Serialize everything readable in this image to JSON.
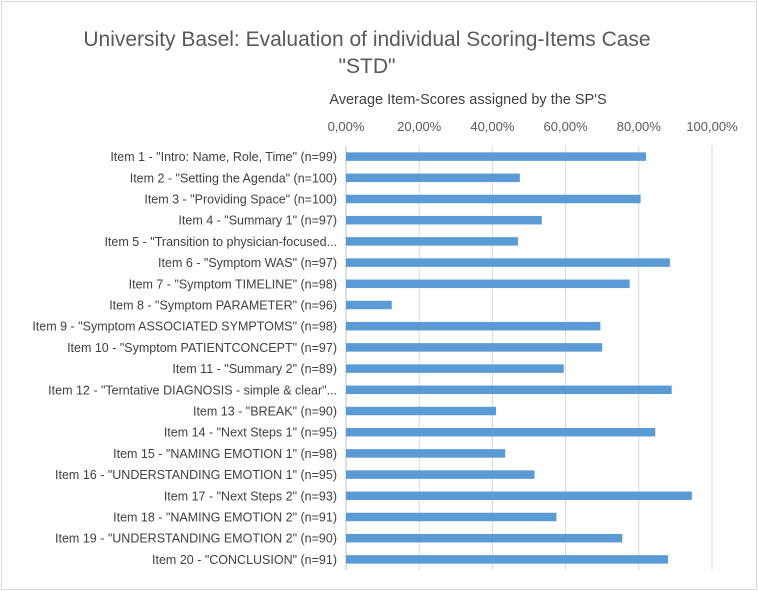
{
  "chart_data": {
    "type": "bar",
    "orientation": "horizontal",
    "title_line1": "University Basel: Evaluation of individual Scoring-Items Case",
    "title_line2": "\"STD\"",
    "xlabel": "Average Item-Scores assigned by the SP'S",
    "xlim": [
      0,
      1
    ],
    "x_ticks": [
      {
        "value": 0,
        "label": "0,00%"
      },
      {
        "value": 0.2,
        "label": "20,00%"
      },
      {
        "value": 0.4,
        "label": "40,00%"
      },
      {
        "value": 0.6,
        "label": "60,00%"
      },
      {
        "value": 0.8,
        "label": "80,00%"
      },
      {
        "value": 1.0,
        "label": "100,00%"
      }
    ],
    "grid": true,
    "bar_color": "#5b9bd5",
    "categories": [
      "Item 1 - \"Intro: Name, Role, Time\" (n=99)",
      "Item 2 - \"Setting the Agenda\" (n=100)",
      "Item 3 - \"Providing Space\" (n=100)",
      "Item 4 - \"Summary 1\" (n=97)",
      "Item 5 - \"Transition to physician-focused...",
      "Item 6 - \"Symptom WAS\" (n=97)",
      "Item 7 - \"Symptom TIMELINE\" (n=98)",
      "Item 8 - \"Symptom PARAMETER\" (n=96)",
      "Item 9 - \"Symptom ASSOCIATED SYMPTOMS\" (n=98)",
      "Item 10 - \"Symptom PATIENTCONCEPT\" (n=97)",
      "Item 11 - \"Summary 2\" (n=89)",
      "Item 12 - \"Terntative DIAGNOSIS - simple & clear\"...",
      "Item 13 - \"BREAK\" (n=90)",
      "Item 14 - \"Next Steps 1\" (n=95)",
      "Item 15 - \"NAMING EMOTION 1\" (n=98)",
      "Item 16 - \"UNDERSTANDING EMOTION 1\" (n=95)",
      "Item 17 - \"Next Steps 2\" (n=93)",
      "Item 18 - \"NAMING EMOTION 2\" (n=91)",
      "Item 19 - \"UNDERSTANDING EMOTION 2\" (n=90)",
      "Item 20 - \"CONCLUSION\" (n=91)"
    ],
    "values": [
      0.82,
      0.475,
      0.805,
      0.535,
      0.47,
      0.885,
      0.775,
      0.125,
      0.695,
      0.7,
      0.595,
      0.89,
      0.41,
      0.845,
      0.435,
      0.515,
      0.945,
      0.575,
      0.755,
      0.88
    ]
  }
}
